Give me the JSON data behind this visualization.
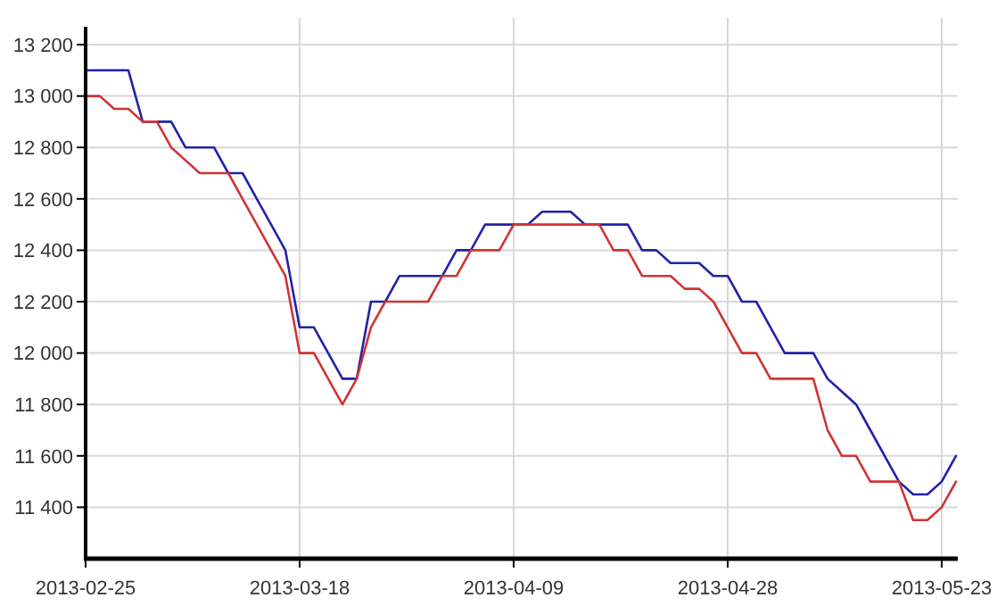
{
  "chart_data": {
    "type": "line",
    "categories": [
      "2013-02-25",
      null,
      null,
      null,
      null,
      null,
      null,
      null,
      null,
      null,
      null,
      null,
      null,
      null,
      null,
      "2013-03-18",
      null,
      null,
      null,
      null,
      null,
      null,
      null,
      null,
      null,
      null,
      null,
      null,
      null,
      null,
      "2013-04-09",
      null,
      null,
      null,
      null,
      null,
      null,
      null,
      null,
      null,
      null,
      null,
      null,
      null,
      null,
      "2013-04-28",
      null,
      null,
      null,
      null,
      null,
      null,
      null,
      null,
      null,
      null,
      null,
      null,
      null,
      null,
      "2013-05-23",
      null
    ],
    "series": [
      {
        "color": "#2222aa",
        "values": [
          13100,
          13100,
          13100,
          13100,
          12900,
          12900,
          12900,
          12800,
          12800,
          12800,
          12700,
          12700,
          12600,
          12500,
          12400,
          12100,
          12100,
          12000,
          11900,
          11900,
          12200,
          12200,
          12300,
          12300,
          12300,
          12300,
          12400,
          12400,
          12500,
          12500,
          12500,
          12500,
          12550,
          12550,
          12550,
          12500,
          12500,
          12500,
          12500,
          12400,
          12400,
          12350,
          12350,
          12350,
          12300,
          12300,
          12200,
          12200,
          12100,
          12000,
          12000,
          12000,
          11900,
          11850,
          11800,
          11700,
          11600,
          11500,
          11450,
          11450,
          11500,
          11600
        ]
      },
      {
        "color": "#d03434",
        "values": [
          13000,
          13000,
          12950,
          12950,
          12900,
          12900,
          12800,
          12750,
          12700,
          12700,
          12700,
          12600,
          12500,
          12400,
          12300,
          12000,
          12000,
          11900,
          11800,
          11900,
          12100,
          12200,
          12200,
          12200,
          12200,
          12300,
          12300,
          12400,
          12400,
          12400,
          12500,
          12500,
          12500,
          12500,
          12500,
          12500,
          12500,
          12400,
          12400,
          12300,
          12300,
          12300,
          12250,
          12250,
          12200,
          12100,
          12000,
          12000,
          11900,
          11900,
          11900,
          11900,
          11700,
          11600,
          11600,
          11500,
          11500,
          11500,
          11350,
          11350,
          11400,
          11500
        ]
      }
    ],
    "ylim": [
      11200,
      13200
    ],
    "yticks": [
      {
        "value": 11400,
        "label": "11 400"
      },
      {
        "value": 11600,
        "label": "11 600"
      },
      {
        "value": 11800,
        "label": "11 800"
      },
      {
        "value": 12000,
        "label": "12 000"
      },
      {
        "value": 12200,
        "label": "12 200"
      },
      {
        "value": 12400,
        "label": "12 400"
      },
      {
        "value": 12600,
        "label": "12 600"
      },
      {
        "value": 12800,
        "label": "12 800"
      },
      {
        "value": 13000,
        "label": "13 000"
      },
      {
        "value": 13200,
        "label": "13 200"
      }
    ],
    "grid": true,
    "marker": "none",
    "line_style": "solid"
  }
}
